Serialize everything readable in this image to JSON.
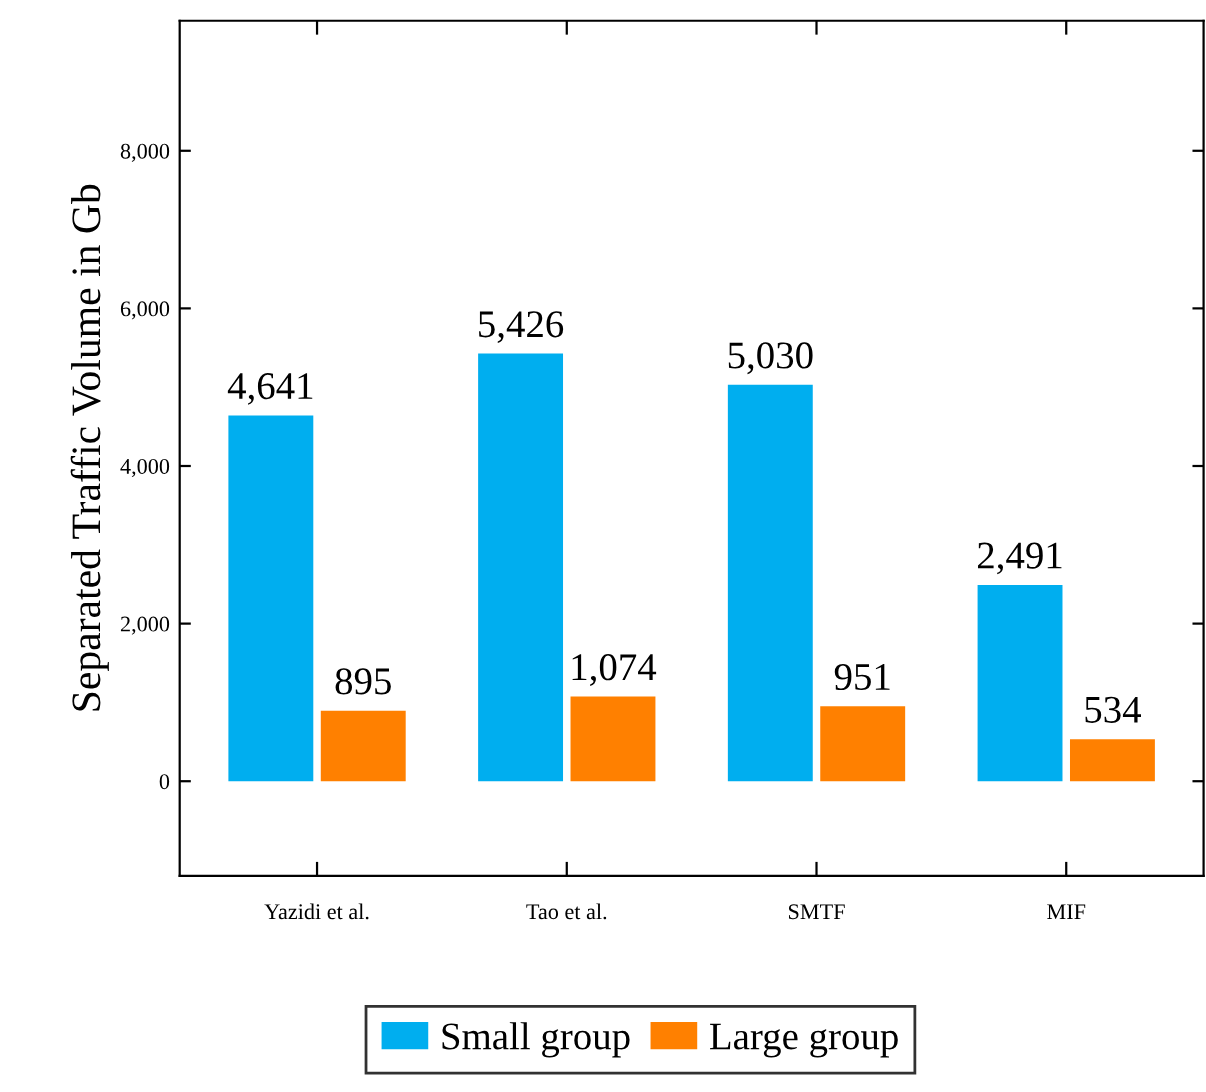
{
  "chart_data": {
    "type": "bar",
    "ylabel": "Separated Traffic Volume in Gb",
    "categories": [
      "Yazidi et al.",
      "Tao et al.",
      "SMTF",
      "MIF"
    ],
    "series": [
      {
        "name": "Small group",
        "color": "#00aeef",
        "values": [
          4641,
          5426,
          5030,
          2491
        ],
        "value_labels": [
          "4,641",
          "5,426",
          "5,030",
          "2,491"
        ]
      },
      {
        "name": "Large group",
        "color": "#ff8000",
        "values": [
          895,
          1074,
          951,
          534
        ],
        "value_labels": [
          "895",
          "1,074",
          "951",
          "534"
        ]
      }
    ],
    "ylim": [
      -1200,
      9650
    ],
    "yticks": [
      {
        "value": 0,
        "label": "0"
      },
      {
        "value": 2000,
        "label": "2,000"
      },
      {
        "value": 4000,
        "label": "4,000"
      },
      {
        "value": 6000,
        "label": "6,000"
      },
      {
        "value": 8000,
        "label": "8,000"
      }
    ],
    "grid": false,
    "legend": "bottom"
  }
}
